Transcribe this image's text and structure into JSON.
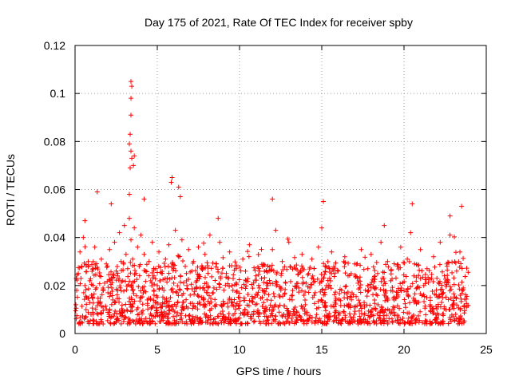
{
  "chart_data": {
    "type": "scatter",
    "title": "Day 175 of 2021, Rate Of TEC Index for receiver spby",
    "xlabel": "GPS time / hours",
    "ylabel": "ROTI / TECUs",
    "xlim": [
      0,
      25
    ],
    "ylim": [
      0,
      0.12
    ],
    "xticks": [
      0,
      5,
      10,
      15,
      20,
      25
    ],
    "yticks": [
      0,
      0.02,
      0.04,
      0.06,
      0.08,
      0.1,
      0.12
    ],
    "xtick_labels": [
      "0",
      "5",
      "10",
      "15",
      "20",
      "25"
    ],
    "ytick_labels": [
      "0",
      "0.02",
      "0.04",
      "0.06",
      "0.08",
      "0.1",
      "0.12"
    ],
    "grid": true,
    "marker": "+",
    "series": [
      {
        "name": "ROTI",
        "color": "#ff0000",
        "notable_points": [
          {
            "x": 3.4,
            "y": 0.105
          },
          {
            "x": 3.45,
            "y": 0.103
          },
          {
            "x": 3.4,
            "y": 0.098
          },
          {
            "x": 3.4,
            "y": 0.091
          },
          {
            "x": 3.35,
            "y": 0.083
          },
          {
            "x": 3.3,
            "y": 0.079
          },
          {
            "x": 3.4,
            "y": 0.076
          },
          {
            "x": 3.45,
            "y": 0.073
          },
          {
            "x": 3.6,
            "y": 0.074
          },
          {
            "x": 3.55,
            "y": 0.07
          },
          {
            "x": 3.35,
            "y": 0.069
          },
          {
            "x": 5.9,
            "y": 0.065
          },
          {
            "x": 5.85,
            "y": 0.063
          },
          {
            "x": 6.3,
            "y": 0.061
          },
          {
            "x": 3.3,
            "y": 0.058
          },
          {
            "x": 1.35,
            "y": 0.059
          },
          {
            "x": 12.0,
            "y": 0.056
          },
          {
            "x": 15.1,
            "y": 0.055
          },
          {
            "x": 20.5,
            "y": 0.054
          },
          {
            "x": 23.5,
            "y": 0.053
          },
          {
            "x": 4.2,
            "y": 0.056
          },
          {
            "x": 2.2,
            "y": 0.054
          },
          {
            "x": 6.4,
            "y": 0.057
          },
          {
            "x": 8.7,
            "y": 0.048
          },
          {
            "x": 0.6,
            "y": 0.047
          },
          {
            "x": 18.8,
            "y": 0.045
          },
          {
            "x": 22.8,
            "y": 0.049
          }
        ],
        "bulk_points": [
          [
            0.05,
            0.012
          ],
          [
            0.1,
            0.018
          ],
          [
            0.2,
            0.025
          ],
          [
            0.3,
            0.034
          ],
          [
            0.4,
            0.028
          ],
          [
            0.5,
            0.04
          ],
          [
            0.6,
            0.02
          ],
          [
            0.7,
            0.015
          ],
          [
            0.8,
            0.03
          ],
          [
            0.9,
            0.022
          ],
          [
            1.0,
            0.016
          ],
          [
            1.1,
            0.027
          ],
          [
            1.2,
            0.036
          ],
          [
            1.3,
            0.019
          ],
          [
            1.4,
            0.013
          ],
          [
            1.5,
            0.024
          ],
          [
            1.6,
            0.031
          ],
          [
            1.7,
            0.011
          ],
          [
            1.8,
            0.021
          ],
          [
            1.9,
            0.029
          ],
          [
            2.0,
            0.017
          ],
          [
            2.1,
            0.035
          ],
          [
            2.2,
            0.023
          ],
          [
            2.3,
            0.014
          ],
          [
            2.4,
            0.038
          ],
          [
            2.5,
            0.026
          ],
          [
            2.6,
            0.018
          ],
          [
            2.7,
            0.042
          ],
          [
            2.8,
            0.03
          ],
          [
            2.9,
            0.022
          ],
          [
            3.0,
            0.045
          ],
          [
            3.1,
            0.033
          ],
          [
            3.2,
            0.027
          ],
          [
            3.3,
            0.048
          ],
          [
            3.4,
            0.039
          ],
          [
            3.5,
            0.031
          ],
          [
            3.6,
            0.044
          ],
          [
            3.7,
            0.025
          ],
          [
            3.8,
            0.036
          ],
          [
            3.9,
            0.028
          ],
          [
            4.0,
            0.041
          ],
          [
            4.1,
            0.019
          ],
          [
            4.2,
            0.033
          ],
          [
            4.3,
            0.026
          ],
          [
            4.4,
            0.014
          ],
          [
            4.5,
            0.03
          ],
          [
            4.6,
            0.022
          ],
          [
            4.7,
            0.038
          ],
          [
            4.8,
            0.016
          ],
          [
            4.9,
            0.027
          ],
          [
            5.0,
            0.02
          ],
          [
            5.1,
            0.034
          ],
          [
            5.2,
            0.012
          ],
          [
            5.3,
            0.025
          ],
          [
            5.4,
            0.018
          ],
          [
            5.5,
            0.031
          ],
          [
            5.6,
            0.023
          ],
          [
            5.7,
            0.037
          ],
          [
            5.8,
            0.015
          ],
          [
            5.9,
            0.029
          ],
          [
            6.0,
            0.021
          ],
          [
            6.1,
            0.043
          ],
          [
            6.2,
            0.017
          ],
          [
            6.3,
            0.032
          ],
          [
            6.4,
            0.024
          ],
          [
            6.5,
            0.039
          ],
          [
            6.6,
            0.013
          ],
          [
            6.7,
            0.028
          ],
          [
            6.8,
            0.02
          ],
          [
            6.9,
            0.035
          ],
          [
            7.0,
            0.016
          ],
          [
            7.1,
            0.026
          ],
          [
            7.2,
            0.03
          ],
          [
            7.3,
            0.011
          ],
          [
            7.4,
            0.022
          ],
          [
            7.5,
            0.036
          ],
          [
            7.6,
            0.019
          ],
          [
            7.7,
            0.027
          ],
          [
            7.8,
            0.014
          ],
          [
            7.9,
            0.033
          ],
          [
            8.0,
            0.021
          ],
          [
            8.2,
            0.041
          ],
          [
            8.4,
            0.017
          ],
          [
            8.6,
            0.029
          ],
          [
            8.8,
            0.038
          ],
          [
            9.0,
            0.012
          ],
          [
            9.2,
            0.025
          ],
          [
            9.4,
            0.034
          ],
          [
            9.6,
            0.018
          ],
          [
            9.8,
            0.027
          ],
          [
            10.0,
            0.015
          ],
          [
            10.2,
            0.031
          ],
          [
            10.4,
            0.022
          ],
          [
            10.6,
            0.037
          ],
          [
            10.8,
            0.013
          ],
          [
            11.0,
            0.024
          ],
          [
            11.2,
            0.019
          ],
          [
            11.4,
            0.028
          ],
          [
            11.6,
            0.011
          ],
          [
            11.8,
            0.026
          ],
          [
            12.0,
            0.035
          ],
          [
            12.2,
            0.043
          ],
          [
            12.4,
            0.016
          ],
          [
            12.6,
            0.03
          ],
          [
            12.8,
            0.021
          ],
          [
            13.0,
            0.038
          ],
          [
            13.2,
            0.014
          ],
          [
            13.4,
            0.027
          ],
          [
            13.6,
            0.019
          ],
          [
            13.8,
            0.033
          ],
          [
            14.0,
            0.012
          ],
          [
            14.2,
            0.025
          ],
          [
            14.4,
            0.031
          ],
          [
            14.6,
            0.017
          ],
          [
            14.8,
            0.036
          ],
          [
            15.0,
            0.044
          ],
          [
            15.2,
            0.028
          ],
          [
            15.4,
            0.02
          ],
          [
            15.6,
            0.034
          ],
          [
            15.8,
            0.013
          ],
          [
            16.0,
            0.026
          ],
          [
            16.2,
            0.018
          ],
          [
            16.4,
            0.032
          ],
          [
            16.6,
            0.024
          ],
          [
            16.8,
            0.015
          ],
          [
            17.0,
            0.029
          ],
          [
            17.2,
            0.021
          ],
          [
            17.4,
            0.035
          ],
          [
            17.6,
            0.011
          ],
          [
            17.8,
            0.027
          ],
          [
            18.0,
            0.033
          ],
          [
            18.2,
            0.019
          ],
          [
            18.4,
            0.025
          ],
          [
            18.6,
            0.038
          ],
          [
            18.8,
            0.016
          ],
          [
            19.0,
            0.03
          ],
          [
            19.2,
            0.022
          ],
          [
            19.4,
            0.014
          ],
          [
            19.6,
            0.028
          ],
          [
            19.8,
            0.036
          ],
          [
            20.0,
            0.018
          ],
          [
            20.2,
            0.031
          ],
          [
            20.4,
            0.042
          ],
          [
            20.6,
            0.024
          ],
          [
            20.8,
            0.013
          ],
          [
            21.0,
            0.035
          ],
          [
            21.2,
            0.02
          ],
          [
            21.4,
            0.027
          ],
          [
            21.6,
            0.015
          ],
          [
            21.8,
            0.032
          ],
          [
            22.0,
            0.023
          ],
          [
            22.2,
            0.038
          ],
          [
            22.4,
            0.017
          ],
          [
            22.6,
            0.029
          ],
          [
            22.8,
            0.041
          ],
          [
            23.0,
            0.012
          ],
          [
            23.2,
            0.026
          ],
          [
            23.4,
            0.034
          ],
          [
            23.6,
            0.019
          ],
          [
            23.8,
            0.011
          ]
        ],
        "dense_band": {
          "x_range": [
            0.0,
            23.9
          ],
          "y_min": 0.004,
          "y_typical_max": 0.03,
          "approx_points": 1600
        }
      }
    ]
  }
}
